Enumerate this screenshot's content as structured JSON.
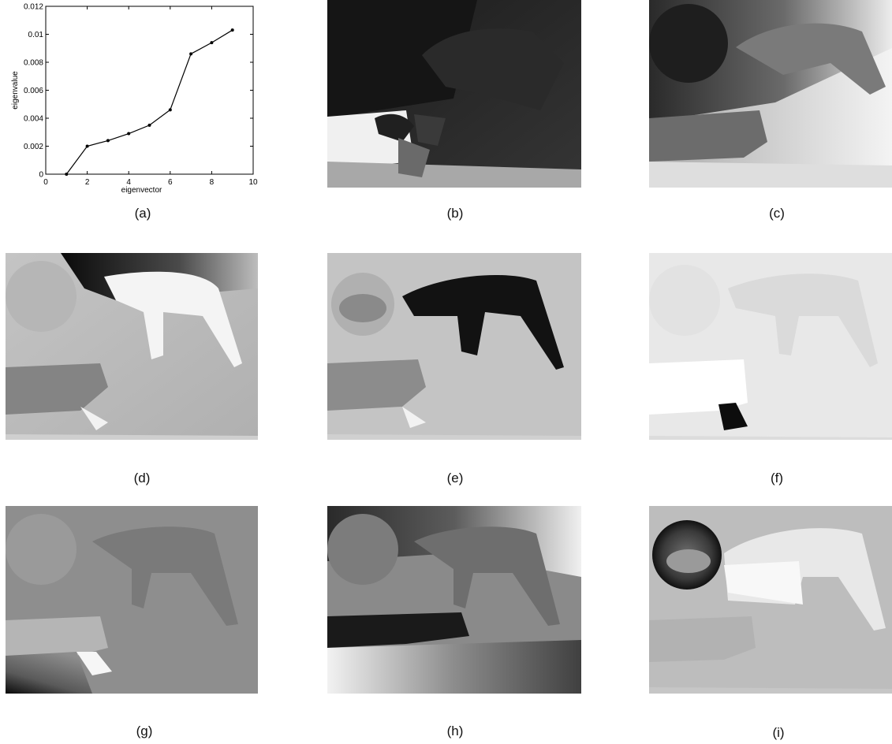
{
  "captions": {
    "a": "(a)",
    "b": "(b)",
    "c": "(c)",
    "d": "(d)",
    "e": "(e)",
    "f": "(f)",
    "g": "(g)",
    "h": "(h)",
    "i": "(i)"
  },
  "chart_data": {
    "type": "line",
    "xlabel": "eigenvector",
    "ylabel": "eigenvalue",
    "xlim": [
      0,
      10
    ],
    "ylim": [
      0,
      0.012
    ],
    "xticks": [
      "0",
      "2",
      "4",
      "6",
      "8",
      "10"
    ],
    "yticks": [
      "0",
      "0.002",
      "0.004",
      "0.006",
      "0.008",
      "0.01",
      "0.012"
    ],
    "x": [
      1,
      2,
      3,
      4,
      5,
      6,
      7,
      8,
      9
    ],
    "y": [
      0.0,
      0.002,
      0.0024,
      0.0029,
      0.0035,
      0.0046,
      0.0086,
      0.0094,
      0.0103
    ],
    "grid": false,
    "line_color": "#000000",
    "marker_color": "#000000"
  },
  "colors": {
    "panel_b_base": "#2b2b2b",
    "panel_c_base": "#bdbdbd",
    "panel_d_base": "#b9b9b9",
    "panel_e_base": "#c4c4c4",
    "panel_f_base": "#e6e6e6",
    "panel_g_base": "#8e8e8e",
    "panel_h_base": "#8a8a8a",
    "panel_i_base": "#bdbdbd"
  }
}
